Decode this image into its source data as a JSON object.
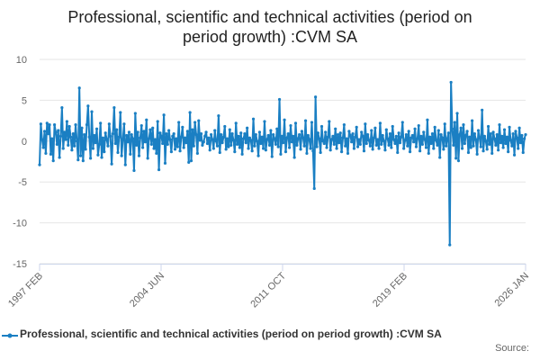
{
  "title_lines": [
    "Professional, scientific and technical activities (period on",
    "period growth) :CVM SA"
  ],
  "source_label": "Source:",
  "colors": {
    "series": "#1a7fc3",
    "gridline": "#e6e6e6",
    "axis": "#ccd6eb",
    "text": "#666666"
  },
  "chart_data": {
    "type": "line",
    "title": "Professional, scientific and technical activities (period on period growth) :CVM SA",
    "xlabel": "",
    "ylabel": "",
    "ylim": [
      -15,
      10
    ],
    "yticks": [
      10,
      5,
      0,
      -5,
      -10,
      -15
    ],
    "xticks": [
      "1997 FEB",
      "2004 JUN",
      "2011 OCT",
      "2019 FEB",
      "2026 JAN"
    ],
    "x_start": "1997 FEB",
    "x_end": "2026 JAN",
    "frequency": "monthly",
    "grid": true,
    "legend_position": "bottom",
    "series": [
      {
        "name": "Professional, scientific and technical activities (period on period growth) :CVM SA",
        "marker": "circle",
        "values": [
          -2.9,
          2.1,
          0.2,
          -0.8,
          1.2,
          -1.5,
          2.2,
          0.9,
          2.0,
          -1.6,
          0.3,
          -2.4,
          2.0,
          1.1,
          -0.4,
          1.3,
          -2.0,
          0.6,
          4.1,
          -0.9,
          1.1,
          0.2,
          2.4,
          -0.5,
          1.8,
          0.5,
          -1.1,
          0.9,
          -0.6,
          2.0,
          0.0,
          -2.3,
          6.5,
          -1.8,
          1.6,
          -2.4,
          0.8,
          -1.0,
          2.0,
          4.3,
          0.5,
          -2.1,
          3.6,
          -0.9,
          0.7,
          -0.2,
          1.5,
          -1.7,
          -0.4,
          2.2,
          -2.0,
          0.4,
          -1.3,
          1.0,
          0.2,
          -0.6,
          2.1,
          0.6,
          -2.8,
          0.9,
          4.1,
          -0.3,
          1.4,
          -1.4,
          0.5,
          3.5,
          -1.8,
          0.2,
          2.1,
          -2.9,
          0.7,
          -0.1,
          1.1,
          -1.6,
          0.8,
          0.3,
          -3.6,
          3.4,
          -0.5,
          1.1,
          -1.8,
          0.4,
          1.9,
          -0.8,
          1.2,
          -0.1,
          2.6,
          -2.1,
          0.3,
          1.4,
          -0.4,
          1.6,
          -0.9,
          0.2,
          -1.5,
          2.4,
          -3.5,
          1.0,
          0.6,
          -0.3,
          3.2,
          -2.7,
          0.9,
          -0.4,
          1.3,
          0.2,
          -1.3,
          0.6,
          0.9,
          -1.0,
          0.3,
          -0.7,
          2.3,
          -1.2,
          0.5,
          1.7,
          -0.8,
          0.4,
          -0.2,
          1.2,
          -2.6,
          3.5,
          -2.4,
          1.4,
          -0.6,
          2.3,
          0.8,
          -1.5,
          2.5,
          0.1,
          0.9,
          -0.5,
          -0.1,
          0.6,
          1.1,
          -0.3,
          0.4,
          -1.1,
          0.8,
          0.2,
          -0.9,
          1.3,
          0.0,
          -0.6,
          3.1,
          -1.4,
          0.8,
          -0.2,
          0.5,
          1.8,
          -1.0,
          0.3,
          -0.7,
          1.4,
          -0.5,
          0.9,
          0.1,
          -1.3,
          2.2,
          -0.4,
          0.6,
          -0.8,
          1.0,
          -1.6,
          0.3,
          0.9,
          -0.2,
          1.6,
          -0.9,
          0.4,
          0.1,
          -1.2,
          2.7,
          -0.6,
          0.8,
          0.0,
          -1.8,
          1.1,
          -0.3,
          0.5,
          -0.9,
          2.4,
          -1.1,
          0.2,
          0.7,
          -0.5,
          1.3,
          -1.9,
          0.8,
          0.3,
          -0.4,
          1.5,
          -0.7,
          5.1,
          -1.6,
          0.6,
          -0.2,
          2.6,
          -1.3,
          0.4,
          0.9,
          -0.8,
          1.9,
          -0.1,
          0.6,
          -2.0,
          2.2,
          -0.5,
          0.3,
          0.8,
          -1.0,
          1.2,
          0.4,
          -0.6,
          2.5,
          -1.5,
          0.7,
          0.2,
          -0.9,
          2.3,
          -1.2,
          -5.8,
          5.4,
          -0.7,
          1.0,
          0.3,
          -1.4,
          1.8,
          0.0,
          -0.3,
          1.1,
          -0.8,
          0.5,
          2.4,
          -1.1,
          0.2,
          0.6,
          -0.4,
          1.5,
          -0.9,
          0.8,
          -0.2,
          1.0,
          -1.3,
          0.4,
          2.0,
          -0.6,
          0.3,
          -1.5,
          1.2,
          0.7,
          -0.1,
          0.9,
          -0.9,
          0.5,
          1.7,
          -0.7,
          0.2,
          -0.4,
          1.1,
          0.6,
          -1.2,
          2.1,
          -0.3,
          0.8,
          0.1,
          -0.6,
          1.3,
          -1.0,
          0.4,
          1.6,
          -0.5,
          0.2,
          -0.9,
          2.2,
          -0.4,
          0.7,
          0.0,
          -1.1,
          1.4,
          0.3,
          -0.5,
          0.9,
          -0.8,
          1.8,
          0.2,
          -0.3,
          0.6,
          -1.4,
          1.0,
          -0.2,
          0.5,
          2.3,
          -0.9,
          0.1,
          0.8,
          -0.6,
          1.2,
          -1.3,
          0.4,
          0.7,
          -0.1,
          1.5,
          -0.7,
          0.3,
          1.9,
          -1.2,
          0.6,
          -0.4,
          1.1,
          0.2,
          -0.8,
          2.6,
          -1.5,
          0.5,
          -0.3,
          0.9,
          -0.9,
          1.7,
          0.1,
          -0.5,
          1.3,
          -2.0,
          0.8,
          0.4,
          -1.0,
          2.1,
          -0.6,
          0.3,
          1.0,
          -12.7,
          7.2,
          1.5,
          -0.5,
          2.3,
          -2.1,
          3.4,
          -2.4,
          0.8,
          1.6,
          -0.9,
          2.0,
          -0.3,
          0.7,
          1.2,
          -1.4,
          0.5,
          -0.8,
          2.5,
          -0.6,
          0.9,
          0.2,
          -1.6,
          1.3,
          0.4,
          -0.7,
          3.8,
          -1.2,
          0.6,
          0.0,
          -1.0,
          1.8,
          -0.4,
          0.9,
          -1.5,
          1.1,
          0.3,
          -0.5,
          0.8,
          -1.1,
          2.0,
          -0.2,
          0.6,
          -0.8,
          1.4,
          -0.3,
          0.5,
          -1.3,
          1.7,
          0.1,
          -0.6,
          0.9,
          -1.7,
          1.2,
          0.4,
          -0.9,
          1.6,
          -0.2,
          0.7,
          -1.4,
          0.3,
          0.8
        ]
      }
    ]
  }
}
